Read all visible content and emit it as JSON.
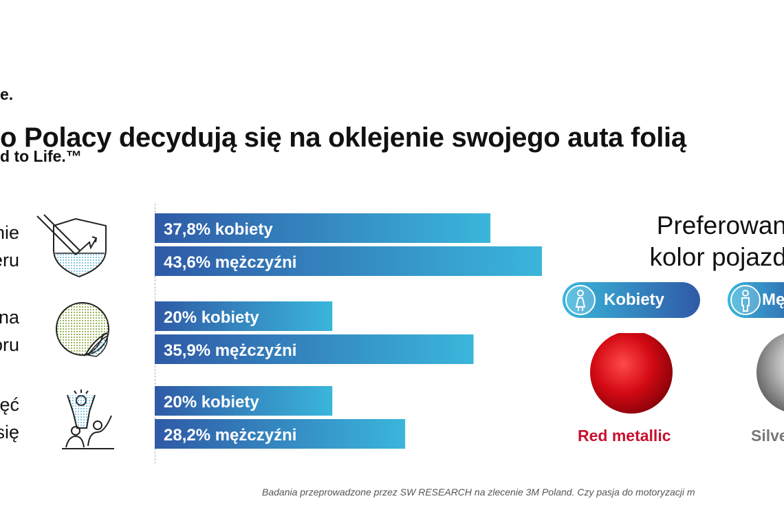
{
  "brand": {
    "line1": "e.",
    "line2": "d to Life.™"
  },
  "headline": "o Polacy decydują się na oklejenie swojego auta folią",
  "rows": [
    {
      "label": "nie\neru",
      "icon": "shield-icon"
    },
    {
      "label": "na\noru",
      "icon": "sticker-icon"
    },
    {
      "label": "ęć\nsię",
      "icon": "celebrating-people-icon"
    }
  ],
  "chart_data": {
    "type": "bar",
    "orientation": "horizontal",
    "categories": [
      "nie eru",
      "na oru",
      "ęć się"
    ],
    "series": [
      {
        "name": "kobiety",
        "values": [
          37.8,
          20,
          20
        ],
        "labels": [
          "37,8% kobiety",
          "20% kobiety",
          "20% kobiety"
        ]
      },
      {
        "name": "mężczyźni",
        "values": [
          43.6,
          35.9,
          28.2
        ],
        "labels": [
          "43,6% mężczyźni",
          "35,9% mężczyźni",
          "28,2% mężczyźni"
        ]
      }
    ],
    "xlim": [
      0,
      45
    ],
    "colors": {
      "bar_start": "#2f5aa6",
      "bar_end": "#3ab6db",
      "label": "#ffffff"
    }
  },
  "preferences": {
    "title": "Preferowan\nkolor pojazd",
    "groups": [
      {
        "label": "Kobiety",
        "icon": "woman-icon",
        "color_name": "Red metallic",
        "swatch": "#d40a14",
        "text_color": "#c8102e"
      },
      {
        "label": "Mę",
        "icon": "man-icon",
        "color_name": "Silve",
        "swatch": "#b7b7b7",
        "text_color": "#777777"
      }
    ]
  },
  "footnote": "Badania przeprowadzone przez SW RESEARCH na zlecenie 3M Poland. Czy pasja do motoryzacji m"
}
